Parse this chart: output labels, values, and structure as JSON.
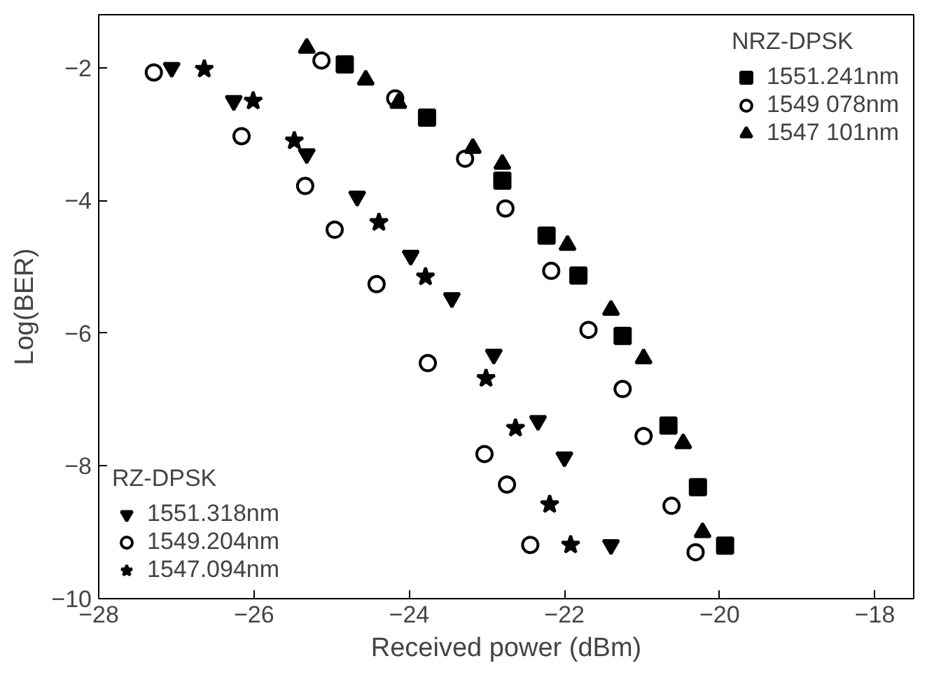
{
  "chart_data": {
    "type": "scatter",
    "xlabel": "Received power (dBm)",
    "ylabel": "Log(BER)",
    "xlim": [
      -28,
      -17.5
    ],
    "ylim": [
      -10,
      -1.2
    ],
    "xticks": [
      -28,
      -26,
      -24,
      -22,
      -20,
      -18
    ],
    "yticks": [
      -10,
      -8,
      -6,
      -4,
      -2
    ],
    "grid": false,
    "legend": [
      "top right",
      "bottom left"
    ],
    "annotations": [
      "NRZ-DPSK",
      "RZ-DPSK"
    ],
    "series": [
      {
        "name": "1551.241nm",
        "color": "#000000",
        "marker": "square",
        "x": [
          -24.83,
          -23.77,
          -22.8,
          -22.23,
          -21.82,
          -21.25,
          -20.66,
          -20.28,
          -19.93
        ],
        "values": [
          -1.95,
          -2.75,
          -3.7,
          -4.53,
          -5.13,
          -6.04,
          -7.39,
          -8.32,
          -9.2
        ]
      },
      {
        "name": "1549 078nm",
        "color": "#000000",
        "marker": "circle_open",
        "x": [
          -25.13,
          -24.18,
          -23.28,
          -22.76,
          -22.17,
          -21.69,
          -21.25,
          -20.98,
          -20.62,
          -20.31
        ],
        "values": [
          -1.89,
          -2.46,
          -3.37,
          -4.12,
          -5.06,
          -5.95,
          -6.84,
          -7.55,
          -8.6,
          -9.3
        ]
      },
      {
        "name": "1547 101nm",
        "color": "#000000",
        "marker": "triangle",
        "x": [
          -25.32,
          -24.56,
          -24.14,
          -23.18,
          -22.8,
          -21.96,
          -21.4,
          -20.98,
          -20.47,
          -20.22
        ],
        "values": [
          -1.7,
          -2.18,
          -2.53,
          -3.21,
          -3.45,
          -4.67,
          -5.65,
          -6.38,
          -7.66,
          -9.0
        ]
      },
      {
        "name": "1551.318nm",
        "color": "#000000",
        "marker": "triangle",
        "x": [
          -27.06,
          -26.26,
          -25.32,
          -24.67,
          -23.98,
          -23.45,
          -22.91,
          -22.34,
          -22.0,
          -21.4
        ],
        "values": [
          -2.0,
          -2.5,
          -3.3,
          -3.94,
          -4.83,
          -5.47,
          -6.32,
          -7.32,
          -7.87,
          -9.19
        ]
      },
      {
        "name": "1549.204nm",
        "color": "#000000",
        "marker": "circle_open",
        "x": [
          -27.29,
          -26.16,
          -25.34,
          -24.96,
          -24.42,
          -23.76,
          -23.03,
          -22.74,
          -22.44
        ],
        "values": [
          -2.07,
          -3.03,
          -3.78,
          -4.44,
          -5.26,
          -6.45,
          -7.82,
          -8.28,
          -9.19
        ]
      },
      {
        "name": "1547.094nm",
        "color": "#000000",
        "marker": "star",
        "x": [
          -26.64,
          -26.01,
          -25.48,
          -24.39,
          -23.79,
          -23.01,
          -22.63,
          -22.19,
          -21.92
        ],
        "values": [
          -2.02,
          -2.5,
          -3.1,
          -4.33,
          -5.15,
          -6.68,
          -7.43,
          -8.58,
          -9.19
        ]
      }
    ]
  }
}
